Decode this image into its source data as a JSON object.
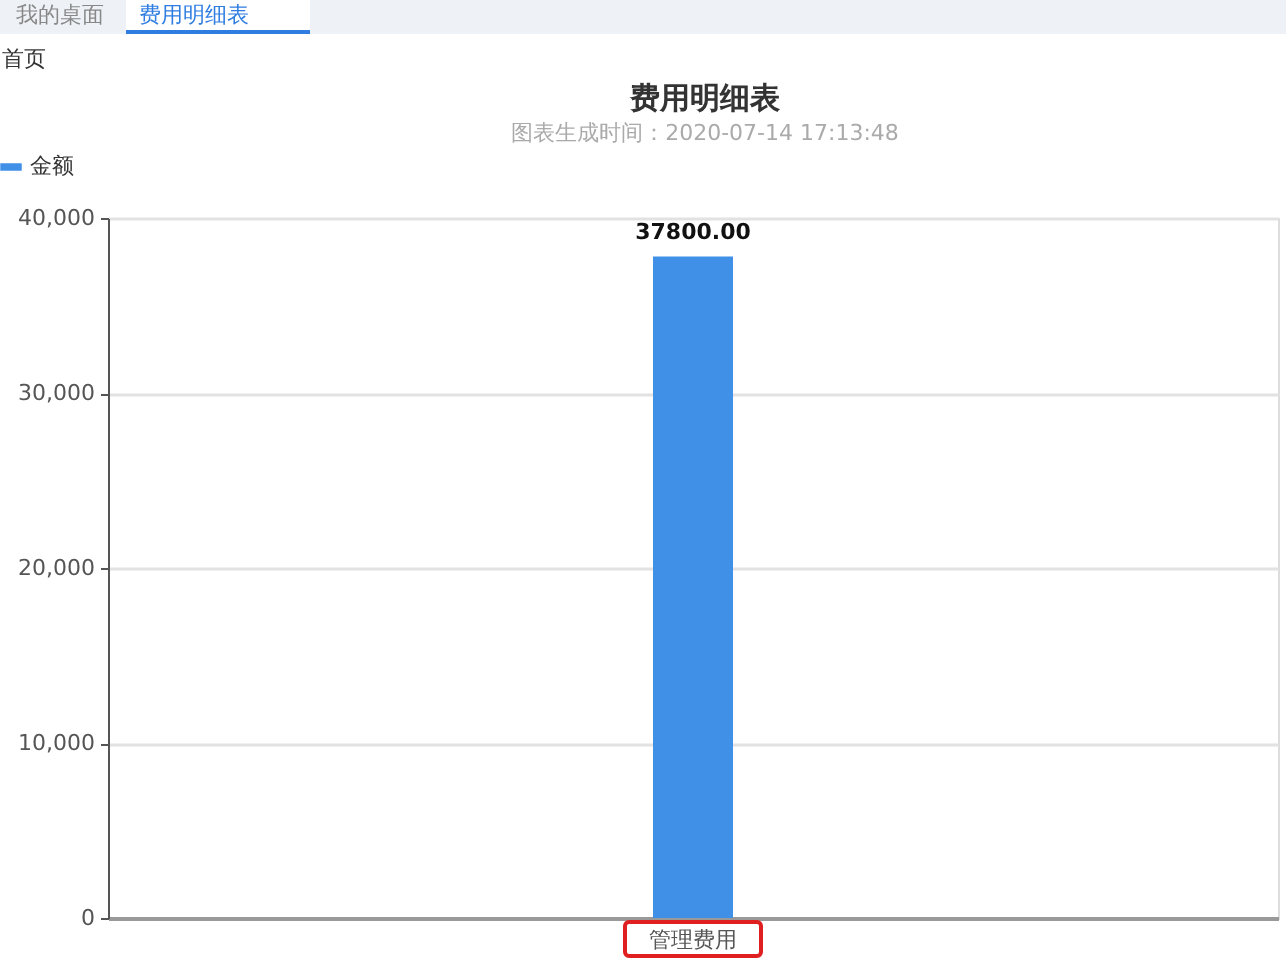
{
  "chart_data": {
    "type": "bar",
    "title": "费用明细表",
    "subtitle": "图表生成时间：2020-07-14 17:13:48",
    "annotations": [
      "我的桌面",
      "费用明细表",
      "首页"
    ],
    "categories": [
      "管理费用"
    ],
    "series": [
      {
        "name": "金额",
        "color": "#4190e8",
        "values": [
          37800
        ],
        "value_labels": [
          "37800.00"
        ]
      }
    ],
    "ylim": [
      0,
      40000
    ],
    "yticks": [
      0,
      {
        "value": 10000,
        "label": "10,000"
      },
      {
        "value": 20000,
        "label": "20,000"
      },
      {
        "value": 30000,
        "label": "30,000"
      },
      {
        "value": 40000,
        "label": "40,000"
      }
    ],
    "grid": "y",
    "legend": "top left"
  }
}
